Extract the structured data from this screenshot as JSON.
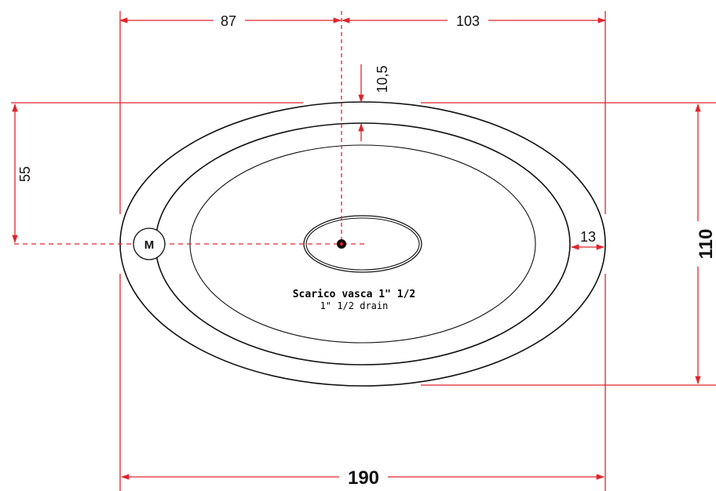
{
  "dimensions": {
    "left_offset": "87",
    "right_offset": "103",
    "rim_width": "10,5",
    "half_width": "55",
    "wall_thickness": "13",
    "total_width": "110",
    "total_length": "190"
  },
  "marker": {
    "letter": "M"
  },
  "drain": {
    "label_it": "Scarico vasca 1\" 1/2",
    "label_en": "1\" 1/2  drain"
  },
  "colors": {
    "dimension_line": "#e0242b",
    "outline": "#111111",
    "background": "#ffffff"
  }
}
